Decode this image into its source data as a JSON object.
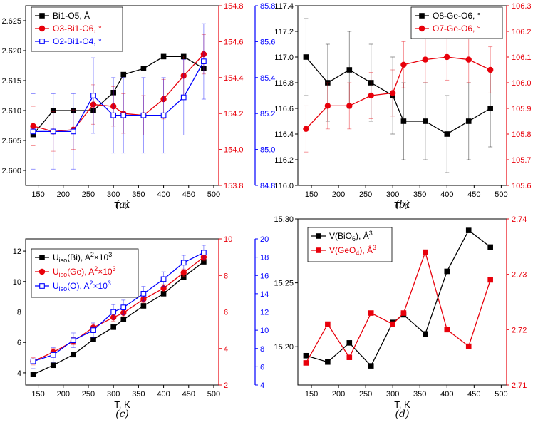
{
  "chart_data": [
    {
      "panel": "a",
      "type": "line",
      "caption": "(a)",
      "xlabel": "T, K",
      "xlim": [
        125,
        510
      ],
      "xticks": [
        150,
        200,
        250,
        300,
        350,
        400,
        450,
        500
      ],
      "axes": [
        {
          "id": "y1",
          "side": "left",
          "color": "#000000",
          "ylim": [
            2.5975,
            2.6275
          ],
          "ticks": [
            2.6,
            2.605,
            2.61,
            2.615,
            2.62,
            2.625
          ],
          "decimals": 3
        },
        {
          "id": "y2",
          "side": "right",
          "color": "#e8000b",
          "ylim": [
            153.8,
            154.8
          ],
          "ticks": [
            153.8,
            154.0,
            154.2,
            154.4,
            154.6,
            154.8
          ],
          "decimals": 1
        },
        {
          "id": "y3",
          "side": "right2",
          "color": "#0000ff",
          "ylim": [
            84.8,
            85.8
          ],
          "ticks": [
            84.8,
            85.0,
            85.2,
            85.4,
            85.6,
            85.8
          ],
          "decimals": 1
        }
      ],
      "legend": {
        "position": "top-left"
      },
      "series": [
        {
          "name": "Bi1-O5, Å",
          "axis": "y1",
          "color": "#000000",
          "marker": "square-filled",
          "x": [
            140,
            180,
            220,
            260,
            300,
            320,
            360,
            400,
            440,
            480
          ],
          "y": [
            2.606,
            2.61,
            2.61,
            2.61,
            2.613,
            2.616,
            2.617,
            2.619,
            2.619,
            2.617
          ],
          "err": [
            0,
            0,
            0,
            0,
            0,
            0,
            0,
            0,
            0,
            0
          ]
        },
        {
          "name": "O3-Bi1-O6, °",
          "axis": "y2",
          "color": "#e8000b",
          "marker": "circle-filled",
          "x": [
            140,
            180,
            220,
            260,
            300,
            320,
            360,
            400,
            440,
            480
          ],
          "y": [
            154.13,
            154.1,
            154.11,
            154.25,
            154.24,
            154.2,
            154.19,
            154.28,
            154.41,
            154.53
          ],
          "err": [
            0.11,
            0.11,
            0.11,
            0.11,
            0.11,
            0.11,
            0.11,
            0.11,
            0.11,
            0.11
          ]
        },
        {
          "name": "O2-Bi1-O4, °",
          "axis": "y3",
          "color": "#0000ff",
          "marker": "square-open",
          "x": [
            140,
            180,
            220,
            260,
            300,
            320,
            360,
            400,
            440,
            480
          ],
          "y": [
            85.1,
            85.1,
            85.1,
            85.3,
            85.19,
            85.19,
            85.19,
            85.19,
            85.29,
            85.49
          ],
          "err": [
            0.21,
            0.21,
            0.21,
            0.21,
            0.21,
            0.21,
            0.21,
            0.21,
            0.21,
            0.21
          ]
        }
      ]
    },
    {
      "panel": "b",
      "type": "line",
      "caption": "(b)",
      "xlabel": "T, K",
      "xlim": [
        125,
        510
      ],
      "xticks": [
        150,
        200,
        250,
        300,
        350,
        400,
        450,
        500
      ],
      "axes": [
        {
          "id": "y1",
          "side": "left",
          "color": "#000000",
          "ylim": [
            116.0,
            117.4
          ],
          "ticks": [
            116.0,
            116.2,
            116.4,
            116.6,
            116.8,
            117.0,
            117.2,
            117.4
          ],
          "decimals": 1
        },
        {
          "id": "y2",
          "side": "right",
          "color": "#e8000b",
          "ylim": [
            105.6,
            106.3
          ],
          "ticks": [
            105.6,
            105.7,
            105.8,
            105.9,
            106.0,
            106.1,
            106.2,
            106.3
          ],
          "decimals": 1
        }
      ],
      "legend": {
        "position": "top-right"
      },
      "series": [
        {
          "name": "O8-Ge-O6, °",
          "axis": "y1",
          "color": "#000000",
          "marker": "square-filled",
          "x": [
            140,
            180,
            220,
            260,
            300,
            320,
            360,
            400,
            440,
            480
          ],
          "y": [
            117.0,
            116.8,
            116.9,
            116.8,
            116.7,
            116.5,
            116.5,
            116.4,
            116.5,
            116.6
          ],
          "err": [
            0.3,
            0.3,
            0.3,
            0.3,
            0.3,
            0.3,
            0.3,
            0.3,
            0.3,
            0.3
          ]
        },
        {
          "name": "O7-Ge-O6, °",
          "axis": "y2",
          "color": "#e8000b",
          "marker": "circle-filled",
          "x": [
            140,
            180,
            220,
            260,
            300,
            320,
            360,
            400,
            440,
            480
          ],
          "y": [
            105.82,
            105.91,
            105.91,
            105.95,
            105.96,
            106.07,
            106.09,
            106.1,
            106.09,
            106.05
          ],
          "err": [
            0.09,
            0.09,
            0.09,
            0.09,
            0.09,
            0.09,
            0.09,
            0.09,
            0.09,
            0.09
          ]
        }
      ]
    },
    {
      "panel": "c",
      "type": "line",
      "caption": "(c)",
      "xlabel": "T, K",
      "xlim": [
        125,
        510
      ],
      "xticks": [
        150,
        200,
        250,
        300,
        350,
        400,
        450,
        500
      ],
      "axes": [
        {
          "id": "y1",
          "side": "left",
          "color": "#000000",
          "ylim": [
            3.2,
            12.8
          ],
          "ticks": [
            4,
            6,
            8,
            10,
            12
          ],
          "decimals": 0
        },
        {
          "id": "y2",
          "side": "right",
          "color": "#e8000b",
          "ylim": [
            2,
            10
          ],
          "ticks": [
            2,
            4,
            6,
            8,
            10
          ],
          "decimals": 0
        },
        {
          "id": "y3",
          "side": "right2",
          "color": "#0000ff",
          "ylim": [
            4,
            20
          ],
          "ticks": [
            4,
            6,
            8,
            10,
            12,
            14,
            16,
            18,
            20
          ],
          "decimals": 0
        }
      ],
      "legend": {
        "position": "top-left"
      },
      "series": [
        {
          "name": "U",
          "name_sub": "iso",
          "name_rest": "(Bi), A",
          "name_sup": "2",
          "name_tail": "×10",
          "name_sup2": "3",
          "axis": "y1",
          "color": "#000000",
          "marker": "square-filled",
          "x": [
            140,
            180,
            220,
            260,
            300,
            320,
            360,
            400,
            440,
            480
          ],
          "y": [
            3.9,
            4.5,
            5.2,
            6.2,
            7.0,
            7.5,
            8.4,
            9.2,
            10.3,
            11.3
          ],
          "err": [
            0.15,
            0.15,
            0.15,
            0.15,
            0.15,
            0.15,
            0.15,
            0.15,
            0.15,
            0.15
          ]
        },
        {
          "name": "U",
          "name_sub": "iso",
          "name_rest": "(Ge), A",
          "name_sup": "2",
          "name_tail": "×10",
          "name_sup2": "3",
          "axis": "y2",
          "color": "#e8000b",
          "marker": "circle-filled",
          "x": [
            140,
            180,
            220,
            260,
            300,
            320,
            360,
            400,
            440,
            480
          ],
          "y": [
            3.3,
            3.8,
            4.4,
            5.15,
            5.7,
            5.95,
            6.7,
            7.3,
            8.15,
            9.0
          ],
          "err": [
            0.2,
            0.2,
            0.2,
            0.2,
            0.2,
            0.2,
            0.2,
            0.2,
            0.2,
            0.2
          ]
        },
        {
          "name": "U",
          "name_sub": "iso",
          "name_rest": "(O), A",
          "name_sup": "2",
          "name_tail": "×10",
          "name_sup2": "3",
          "axis": "y3",
          "color": "#0000ff",
          "marker": "square-open",
          "x": [
            140,
            180,
            220,
            260,
            300,
            320,
            360,
            400,
            440,
            480
          ],
          "y": [
            6.6,
            7.3,
            8.9,
            10.0,
            12.0,
            12.5,
            14.0,
            15.6,
            17.4,
            18.5
          ],
          "err": [
            0.8,
            0.8,
            0.8,
            0.8,
            0.8,
            0.8,
            0.8,
            0.8,
            0.8,
            0.8
          ]
        }
      ]
    },
    {
      "panel": "d",
      "type": "line",
      "caption": "(d)",
      "xlabel": "T, K",
      "xlim": [
        125,
        510
      ],
      "xticks": [
        150,
        200,
        250,
        300,
        350,
        400,
        450,
        500
      ],
      "axes": [
        {
          "id": "y1",
          "side": "left",
          "color": "#000000",
          "ylim": [
            15.17,
            15.3
          ],
          "ticks": [
            15.2,
            15.25,
            15.3
          ],
          "decimals": 2
        },
        {
          "id": "y2",
          "side": "right",
          "color": "#e8000b",
          "ylim": [
            2.71,
            2.74
          ],
          "ticks": [
            2.71,
            2.72,
            2.73,
            2.74
          ],
          "decimals": 2
        }
      ],
      "legend": {
        "position": "top-left"
      },
      "series": [
        {
          "name": "V(BiO",
          "name_sub": "6",
          "name_rest": "), Å",
          "name_sup": "3",
          "axis": "y1",
          "color": "#000000",
          "marker": "square-filled",
          "x": [
            140,
            180,
            220,
            260,
            300,
            320,
            360,
            400,
            440,
            480
          ],
          "y": [
            15.193,
            15.188,
            15.203,
            15.185,
            15.219,
            15.225,
            15.21,
            15.259,
            15.291,
            15.278
          ],
          "err": [
            0,
            0,
            0,
            0,
            0,
            0,
            0,
            0,
            0,
            0
          ]
        },
        {
          "name": "V(GeO",
          "name_sub": "4",
          "name_rest": "), Å",
          "name_sup": "3",
          "axis": "y2",
          "color": "#e8000b",
          "marker": "square-filled",
          "x": [
            140,
            180,
            220,
            260,
            300,
            320,
            360,
            400,
            440,
            480
          ],
          "y": [
            2.714,
            2.721,
            2.715,
            2.723,
            2.721,
            2.723,
            2.734,
            2.72,
            2.717,
            2.729
          ],
          "err": [
            0,
            0,
            0,
            0,
            0,
            0,
            0,
            0,
            0,
            0
          ]
        }
      ]
    }
  ]
}
